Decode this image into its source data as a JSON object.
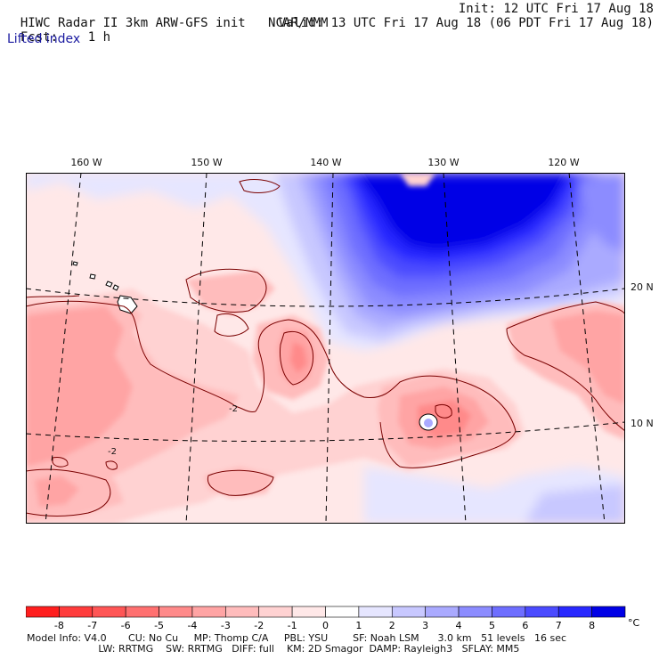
{
  "header": {
    "model": "HIWC Radar II 3km ARW-GFS init",
    "org": "NCAR/MMM",
    "fcst_label": "Fcst:",
    "fcst_value": "1 h",
    "init": "Init: 12 UTC Fri 17 Aug 18",
    "valid": "Valid: 13 UTC Fri 17 Aug 18 (06 PDT Fri 17 Aug 18)"
  },
  "variable_label": "Lifted index",
  "map": {
    "longitude_labels": [
      "160 W",
      "150 W",
      "140 W",
      "130 W",
      "120 W"
    ],
    "latitude_labels": [
      "20 N",
      "10 N"
    ],
    "contour_labels": [
      "-2",
      "-2"
    ]
  },
  "colorbar": {
    "ticks": [
      "-8",
      "-7",
      "-6",
      "-5",
      "-4",
      "-3",
      "-2",
      "-1",
      "0",
      "1",
      "2",
      "3",
      "4",
      "5",
      "6",
      "7",
      "8"
    ],
    "unit": "°C",
    "colors": [
      "#ff1e1e",
      "#ff3c3c",
      "#ff5656",
      "#ff7070",
      "#ff8a8a",
      "#ffa4a4",
      "#ffbcbc",
      "#ffd2d2",
      "#ffe8e8",
      "#ffffff",
      "#e6e6ff",
      "#c8c8ff",
      "#aaaaff",
      "#8c8cff",
      "#6e6eff",
      "#4b4bff",
      "#2828ff",
      "#0000e6"
    ]
  },
  "footer": {
    "line1": "Model Info: V4.0       CU: No Cu     MP: Thomp C/A     PBL: YSU        SF: Noah LSM      3.0 km   51 levels   16 sec",
    "line2": "                       LW: RRTMG    SW: RRTMG   DIFF: full    KM: 2D Smagor  DAMP: Rayleigh3   SFLAY: MM5"
  }
}
